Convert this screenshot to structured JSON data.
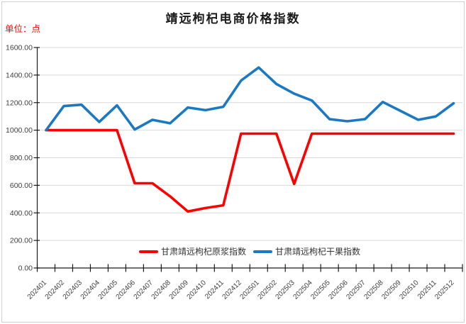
{
  "title": "靖远枸杞电商价格指数",
  "unit_label": "单位：点",
  "colors": {
    "unit_label": "#ff0000",
    "title": "#1a1a1a",
    "axis": "#1a1a1a",
    "gridline": "#d9d9d9",
    "tick_label": "#404040",
    "legend_text": "#333333",
    "background": "#ffffff"
  },
  "chart_data": {
    "type": "line",
    "title": "靖远枸杞电商价格指数",
    "ylabel": "单位：点",
    "xlabel": "",
    "ylim": [
      0,
      1600
    ],
    "ytick_step": 200,
    "ytick_labels": [
      "0.00",
      "200.00",
      "400.00",
      "600.00",
      "800.00",
      "1000.00",
      "1200.00",
      "1400.00",
      "1600.00"
    ],
    "grid": "horizontal",
    "legend_position": "bottom-inside",
    "categories": [
      "202401",
      "202402",
      "202403",
      "202404",
      "202405",
      "202406",
      "202407",
      "202408",
      "202409",
      "202410",
      "202411",
      "202412",
      "202501",
      "202502",
      "202503",
      "202504",
      "202505",
      "202506",
      "202507",
      "202508",
      "202509",
      "202510",
      "202511",
      "202512"
    ],
    "series": [
      {
        "name": "甘肃靖远枸杞原浆指数",
        "color": "#ff0000",
        "values": [
          1000,
          1000,
          1000,
          1000,
          1000,
          615,
          615,
          520,
          410,
          435,
          455,
          975,
          975,
          975,
          610,
          975,
          975,
          975,
          975,
          975,
          975,
          975,
          975,
          975
        ]
      },
      {
        "name": "甘肃靖远枸杞干果指数",
        "color": "#1b79c4",
        "values": [
          1000,
          1175,
          1185,
          1060,
          1180,
          1005,
          1075,
          1050,
          1165,
          1145,
          1170,
          1360,
          1455,
          1335,
          1265,
          1215,
          1080,
          1065,
          1080,
          1205,
          1140,
          1075,
          1100,
          1195
        ]
      }
    ]
  }
}
